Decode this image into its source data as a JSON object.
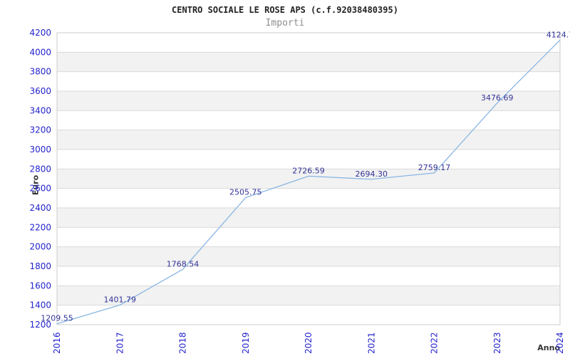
{
  "chart_data": {
    "type": "line",
    "title": "CENTRO SOCIALE LE ROSE APS (c.f.92038480395)",
    "subtitle": "Importi",
    "xlabel": "Anno",
    "ylabel": "Euro",
    "categories": [
      "2016",
      "2017",
      "2018",
      "2019",
      "2020",
      "2021",
      "2022",
      "2023",
      "2024"
    ],
    "values": [
      1209.55,
      1401.79,
      1768.54,
      2505.75,
      2726.59,
      2694.3,
      2759.17,
      3476.69,
      4124.7
    ],
    "point_labels": [
      "1209.55",
      "1401.79",
      "1768.54",
      "2505.75",
      "2726.59",
      "2694.30",
      "2759.17",
      "3476.69",
      "4124.7"
    ],
    "ylim": [
      1200,
      4200
    ],
    "ytick_step": 200,
    "grid": "horizontal-bands",
    "legend_position": "none",
    "colors": {
      "line": "#8ab6e3",
      "band_fill": "#f2f2f2",
      "band_alt_fill": "#ffffff",
      "grid": "#dadada",
      "border": "#cccccc",
      "tick_label": "#2323cc",
      "point_label": "#333399",
      "title": "#222222",
      "subtitle": "#8f8f8f",
      "axis_title": "#333333"
    }
  }
}
